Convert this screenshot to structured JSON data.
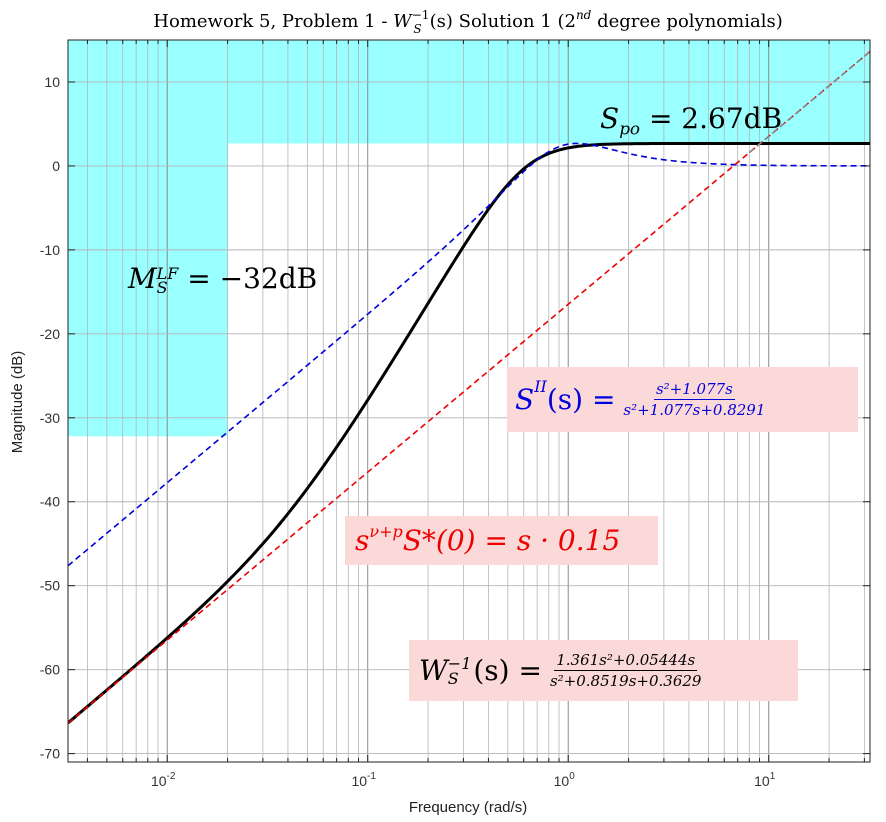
{
  "chart_data": {
    "type": "line",
    "title": "Homework 5, Problem 1 - W_S^{-1}(s) Solution 1 (2^{nd} degree polynomials)",
    "title_parts": {
      "prefix": "Homework 5, Problem 1 - ",
      "sym": "W",
      "sub": "S",
      "sup": "−1",
      "arg": "(s)",
      "mid": " Solution 1 (2",
      "nd": "nd",
      "suffix": " degree polynomials)"
    },
    "xlabel": "Frequency  (rad/s)",
    "ylabel": "Magnitude (dB)",
    "xscale": "log",
    "xlim": [
      0.0032,
      32
    ],
    "ylim": [
      -71,
      15
    ],
    "grid": true,
    "x_ticks": [
      {
        "value": 0.01,
        "base": "10",
        "exp": "-2"
      },
      {
        "value": 0.1,
        "base": "10",
        "exp": "-1"
      },
      {
        "value": 1,
        "base": "10",
        "exp": "0"
      },
      {
        "value": 10,
        "base": "10",
        "exp": "1"
      }
    ],
    "y_ticks": [
      10,
      0,
      -10,
      -20,
      -30,
      -40,
      -50,
      -60,
      -70
    ],
    "bound_regions": [
      {
        "name": "low-frequency-bound",
        "x_range": [
          0.0032,
          0.02
        ],
        "y_range": [
          -32.2,
          15
        ],
        "color": "#99ffff"
      },
      {
        "name": "peak-bound",
        "x_range": [
          0.02,
          32
        ],
        "y_range": [
          2.67,
          15
        ],
        "color": "#99ffff"
      }
    ],
    "series": [
      {
        "key": "WS_inv",
        "style": "solid",
        "color": "#000000",
        "width": 3,
        "numerator": [
          1.361,
          0.05444,
          0
        ],
        "denominator": [
          1,
          0.8519,
          0.3629
        ]
      },
      {
        "key": "S_II",
        "style": "dashed",
        "color": "#0000dd",
        "width": 1.6,
        "numerator": [
          1,
          1.077,
          0
        ],
        "denominator": [
          1,
          1.077,
          0.8291
        ]
      },
      {
        "key": "asymptote",
        "style": "dashed",
        "color": "#ee0000",
        "width": 1.6,
        "numerator": [
          0.15,
          0
        ],
        "denominator": [
          1
        ]
      },
      {
        "key": "asymptote-extension",
        "style": "dashed",
        "color": "#888888",
        "width": 1.6,
        "numerator": [
          0.15,
          0
        ],
        "denominator": [
          1
        ],
        "x_from": 8
      }
    ],
    "annotations": {
      "spo": {
        "sym": "S",
        "sub": "po",
        "rest": " = 2.67dB"
      },
      "mlf": {
        "sym": "M",
        "sub": "S",
        "sup": "LF",
        "rest": " = −32dB"
      },
      "sii": {
        "lhs": "S",
        "sup": "II",
        "arg": "(s) =",
        "num": "s²+1.077s",
        "den": "s²+1.077s+0.8291",
        "color": "#0000dd"
      },
      "snu": {
        "lhs": "s",
        "sup": "ν+p",
        "rest": "S*(0) = s · 0.15",
        "color": "#ee0000"
      },
      "ws": {
        "lhs": "W",
        "sub": "S",
        "sup": "−1",
        "arg": "(s) =",
        "num": "1.361s²+0.05444s",
        "den": "s²+0.8519s+0.3629",
        "color": "#000000"
      }
    }
  }
}
